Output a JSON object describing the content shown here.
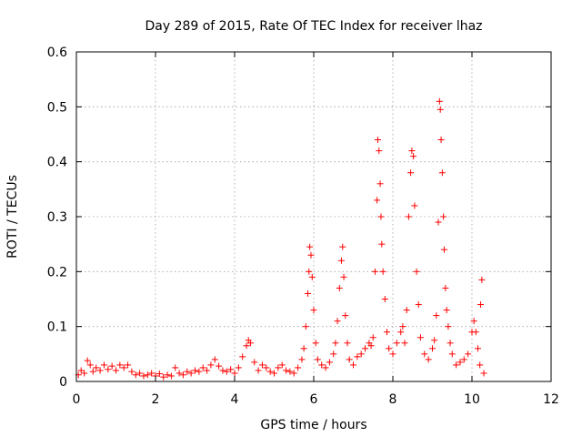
{
  "chart_data": {
    "type": "scatter",
    "title": "Day 289 of 2015, Rate Of TEC Index for receiver lhaz",
    "xlabel": "GPS time / hours",
    "ylabel": "ROTI / TECUs",
    "xlim": [
      0,
      12
    ],
    "ylim": [
      0,
      0.6
    ],
    "x_ticks": [
      "0",
      "2",
      "4",
      "6",
      "8",
      "10",
      "12"
    ],
    "y_ticks": [
      "0",
      "0.1",
      "0.2",
      "0.3",
      "0.4",
      "0.5",
      "0.6"
    ],
    "grid": true,
    "marker": "+",
    "series_color": "#ff0000",
    "series": [
      {
        "name": "ROTI",
        "points": [
          [
            0.05,
            0.012
          ],
          [
            0.12,
            0.02
          ],
          [
            0.2,
            0.015
          ],
          [
            0.28,
            0.038
          ],
          [
            0.35,
            0.03
          ],
          [
            0.42,
            0.018
          ],
          [
            0.5,
            0.025
          ],
          [
            0.6,
            0.02
          ],
          [
            0.7,
            0.03
          ],
          [
            0.8,
            0.022
          ],
          [
            0.9,
            0.028
          ],
          [
            1.0,
            0.02
          ],
          [
            1.1,
            0.03
          ],
          [
            1.2,
            0.025
          ],
          [
            1.3,
            0.03
          ],
          [
            1.4,
            0.018
          ],
          [
            1.5,
            0.012
          ],
          [
            1.6,
            0.015
          ],
          [
            1.7,
            0.01
          ],
          [
            1.8,
            0.012
          ],
          [
            1.9,
            0.015
          ],
          [
            2.0,
            0.01
          ],
          [
            2.1,
            0.014
          ],
          [
            2.2,
            0.008
          ],
          [
            2.3,
            0.012
          ],
          [
            2.4,
            0.01
          ],
          [
            2.5,
            0.025
          ],
          [
            2.6,
            0.015
          ],
          [
            2.7,
            0.012
          ],
          [
            2.8,
            0.018
          ],
          [
            2.9,
            0.015
          ],
          [
            3.0,
            0.02
          ],
          [
            3.1,
            0.018
          ],
          [
            3.2,
            0.025
          ],
          [
            3.3,
            0.02
          ],
          [
            3.4,
            0.03
          ],
          [
            3.5,
            0.04
          ],
          [
            3.6,
            0.028
          ],
          [
            3.7,
            0.02
          ],
          [
            3.8,
            0.018
          ],
          [
            3.9,
            0.022
          ],
          [
            4.0,
            0.015
          ],
          [
            4.1,
            0.025
          ],
          [
            4.2,
            0.045
          ],
          [
            4.3,
            0.065
          ],
          [
            4.35,
            0.075
          ],
          [
            4.4,
            0.07
          ],
          [
            4.5,
            0.035
          ],
          [
            4.6,
            0.02
          ],
          [
            4.7,
            0.03
          ],
          [
            4.8,
            0.025
          ],
          [
            4.9,
            0.018
          ],
          [
            5.0,
            0.015
          ],
          [
            5.1,
            0.025
          ],
          [
            5.2,
            0.03
          ],
          [
            5.3,
            0.02
          ],
          [
            5.4,
            0.018
          ],
          [
            5.5,
            0.015
          ],
          [
            5.6,
            0.025
          ],
          [
            5.7,
            0.04
          ],
          [
            5.75,
            0.06
          ],
          [
            5.8,
            0.1
          ],
          [
            5.85,
            0.16
          ],
          [
            5.88,
            0.2
          ],
          [
            5.9,
            0.245
          ],
          [
            5.93,
            0.23
          ],
          [
            5.96,
            0.19
          ],
          [
            6.0,
            0.13
          ],
          [
            6.05,
            0.07
          ],
          [
            6.1,
            0.04
          ],
          [
            6.2,
            0.03
          ],
          [
            6.3,
            0.025
          ],
          [
            6.4,
            0.035
          ],
          [
            6.5,
            0.05
          ],
          [
            6.55,
            0.07
          ],
          [
            6.6,
            0.11
          ],
          [
            6.65,
            0.17
          ],
          [
            6.7,
            0.22
          ],
          [
            6.73,
            0.245
          ],
          [
            6.76,
            0.19
          ],
          [
            6.8,
            0.12
          ],
          [
            6.85,
            0.07
          ],
          [
            6.9,
            0.04
          ],
          [
            7.0,
            0.03
          ],
          [
            7.1,
            0.045
          ],
          [
            7.2,
            0.05
          ],
          [
            7.3,
            0.06
          ],
          [
            7.4,
            0.07
          ],
          [
            7.45,
            0.065
          ],
          [
            7.5,
            0.08
          ],
          [
            7.55,
            0.2
          ],
          [
            7.6,
            0.33
          ],
          [
            7.62,
            0.44
          ],
          [
            7.65,
            0.42
          ],
          [
            7.68,
            0.36
          ],
          [
            7.7,
            0.3
          ],
          [
            7.72,
            0.25
          ],
          [
            7.75,
            0.2
          ],
          [
            7.8,
            0.15
          ],
          [
            7.85,
            0.09
          ],
          [
            7.9,
            0.06
          ],
          [
            8.0,
            0.05
          ],
          [
            8.1,
            0.07
          ],
          [
            8.2,
            0.09
          ],
          [
            8.25,
            0.1
          ],
          [
            8.3,
            0.07
          ],
          [
            8.35,
            0.13
          ],
          [
            8.4,
            0.3
          ],
          [
            8.45,
            0.38
          ],
          [
            8.48,
            0.42
          ],
          [
            8.52,
            0.41
          ],
          [
            8.55,
            0.32
          ],
          [
            8.6,
            0.2
          ],
          [
            8.65,
            0.14
          ],
          [
            8.7,
            0.08
          ],
          [
            8.8,
            0.05
          ],
          [
            8.9,
            0.04
          ],
          [
            9.0,
            0.06
          ],
          [
            9.05,
            0.075
          ],
          [
            9.1,
            0.12
          ],
          [
            9.15,
            0.29
          ],
          [
            9.18,
            0.51
          ],
          [
            9.2,
            0.495
          ],
          [
            9.22,
            0.44
          ],
          [
            9.25,
            0.38
          ],
          [
            9.28,
            0.3
          ],
          [
            9.3,
            0.24
          ],
          [
            9.33,
            0.17
          ],
          [
            9.36,
            0.13
          ],
          [
            9.4,
            0.1
          ],
          [
            9.45,
            0.07
          ],
          [
            9.5,
            0.05
          ],
          [
            9.6,
            0.03
          ],
          [
            9.7,
            0.035
          ],
          [
            9.8,
            0.04
          ],
          [
            9.9,
            0.05
          ],
          [
            10.0,
            0.09
          ],
          [
            10.05,
            0.11
          ],
          [
            10.1,
            0.09
          ],
          [
            10.15,
            0.06
          ],
          [
            10.2,
            0.03
          ],
          [
            10.22,
            0.14
          ],
          [
            10.25,
            0.185
          ],
          [
            10.3,
            0.015
          ]
        ]
      }
    ]
  }
}
